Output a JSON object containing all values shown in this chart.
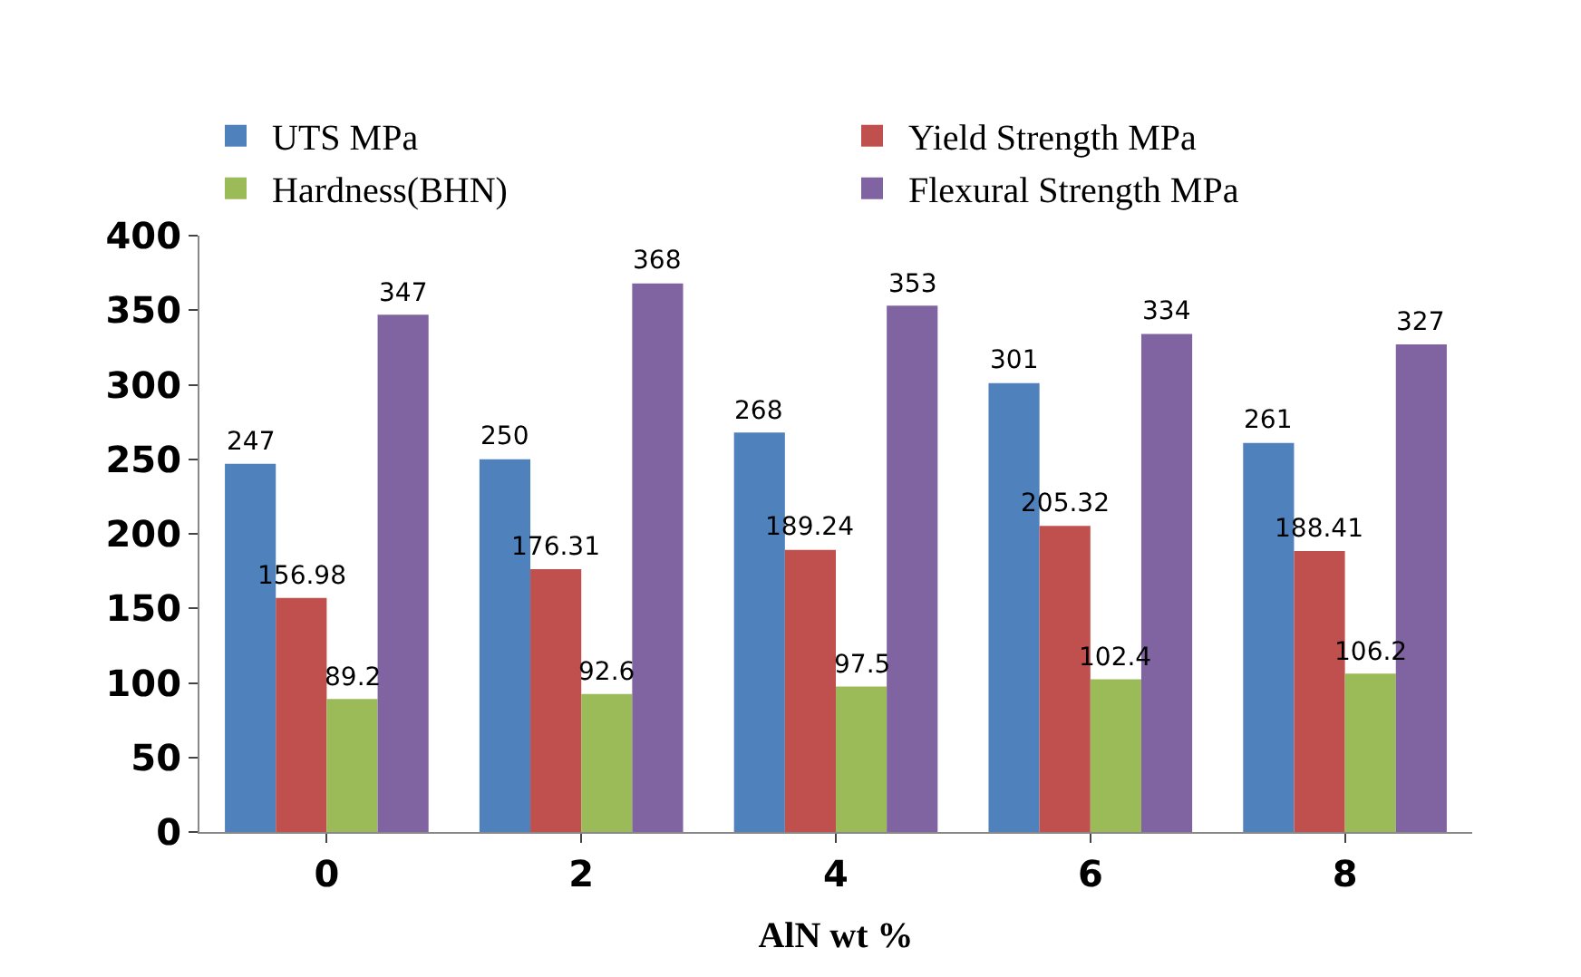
{
  "chart_data": {
    "type": "bar",
    "xlabel": "AlN wt %",
    "categories": [
      "0",
      "2",
      "4",
      "6",
      "8"
    ],
    "series": [
      {
        "name": "UTS MPa",
        "color": "#4f81bd",
        "values": [
          247,
          250,
          268,
          301,
          261
        ]
      },
      {
        "name": "Yield Strength MPa",
        "color": "#c0504d",
        "values": [
          156.98,
          176.31,
          189.24,
          205.32,
          188.41
        ]
      },
      {
        "name": "Hardness(BHN)",
        "color": "#9bbb59",
        "values": [
          89.2,
          92.6,
          97.5,
          102.4,
          106.2
        ]
      },
      {
        "name": "Flexural Strength MPa",
        "color": "#8064a2",
        "values": [
          347,
          368,
          353,
          334,
          327
        ]
      }
    ],
    "ylim": [
      0,
      400
    ],
    "yticks": [
      0,
      50,
      100,
      150,
      200,
      250,
      300,
      350,
      400
    ],
    "data_labels": true,
    "legend": "top"
  }
}
